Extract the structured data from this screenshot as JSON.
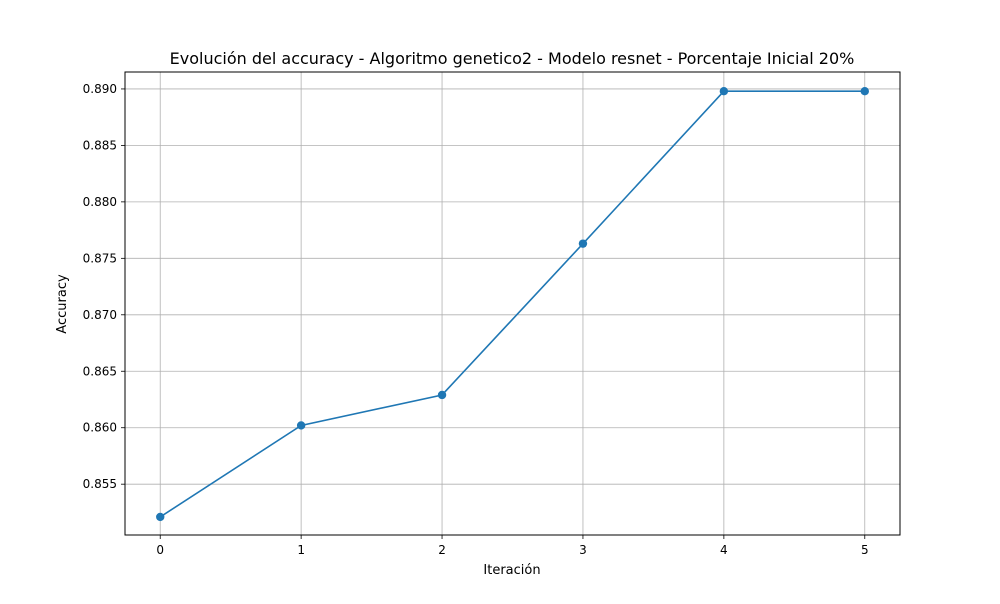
{
  "chart_data": {
    "type": "line",
    "title": "Evolución del accuracy - Algoritmo genetico2 - Modelo resnet - Porcentaje Inicial 20%",
    "xlabel": "Iteración",
    "ylabel": "Accuracy",
    "x": [
      0,
      1,
      2,
      3,
      4,
      5
    ],
    "series": [
      {
        "values": [
          0.8521,
          0.8602,
          0.8629,
          0.8763,
          0.8898,
          0.8898
        ],
        "color": "#1f77b4",
        "marker": "circle"
      }
    ],
    "xlim": [
      -0.25,
      5.25
    ],
    "ylim": [
      0.8505,
      0.8915
    ],
    "xticks": [
      "0",
      "1",
      "2",
      "3",
      "4",
      "5"
    ],
    "yticks": [
      "0.855",
      "0.860",
      "0.865",
      "0.870",
      "0.875",
      "0.880",
      "0.885",
      "0.890"
    ],
    "grid": true,
    "legend": false
  }
}
